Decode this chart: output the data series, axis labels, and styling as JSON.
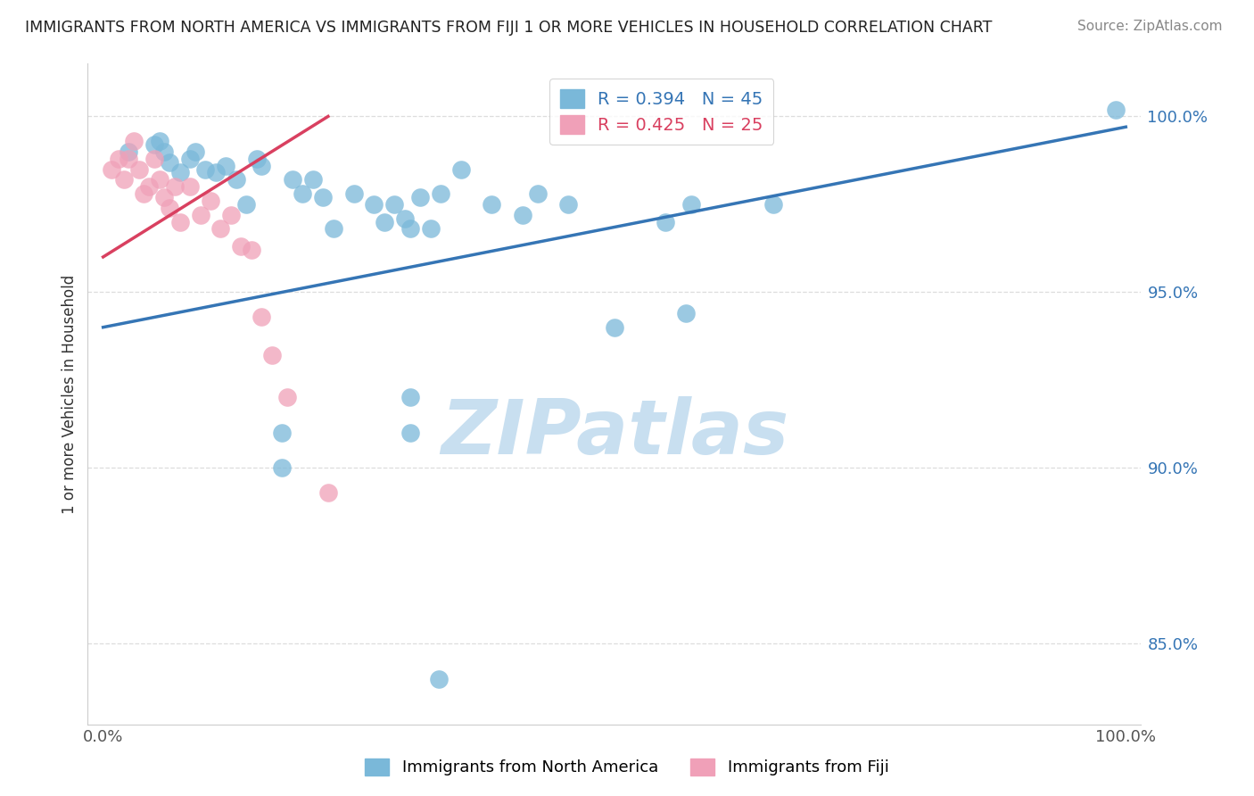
{
  "title": "IMMIGRANTS FROM NORTH AMERICA VS IMMIGRANTS FROM FIJI 1 OR MORE VEHICLES IN HOUSEHOLD CORRELATION CHART",
  "source": "Source: ZipAtlas.com",
  "ylabel": "1 or more Vehicles in Household",
  "ytick_values": [
    0.85,
    0.9,
    0.95,
    1.0
  ],
  "ytick_labels": [
    "85.0%",
    "90.0%",
    "95.0%",
    "100.0%"
  ],
  "xtick_values": [
    0.0,
    1.0
  ],
  "xtick_labels": [
    "0.0%",
    "100.0%"
  ],
  "ylim": [
    0.827,
    1.015
  ],
  "xlim": [
    -0.015,
    1.015
  ],
  "blue_R": 0.394,
  "blue_N": 45,
  "pink_R": 0.425,
  "pink_N": 25,
  "blue_color": "#7ab8d9",
  "pink_color": "#f0a0b8",
  "blue_line_color": "#3575b5",
  "pink_line_color": "#d94060",
  "watermark_text": "ZIPatlas",
  "watermark_color": "#c8dff0",
  "blue_scatter_x": [
    0.025,
    0.05,
    0.055,
    0.06,
    0.065,
    0.075,
    0.085,
    0.09,
    0.1,
    0.11,
    0.12,
    0.13,
    0.14,
    0.15,
    0.155,
    0.185,
    0.195,
    0.205,
    0.215,
    0.225,
    0.245,
    0.265,
    0.275,
    0.285,
    0.295,
    0.3,
    0.31,
    0.32,
    0.33,
    0.35,
    0.38,
    0.41,
    0.425,
    0.455,
    0.5,
    0.55,
    0.3,
    0.3,
    0.175,
    0.175,
    0.57,
    0.575,
    0.655,
    0.328,
    0.99
  ],
  "blue_scatter_y": [
    0.99,
    0.992,
    0.993,
    0.99,
    0.987,
    0.984,
    0.988,
    0.99,
    0.985,
    0.984,
    0.986,
    0.982,
    0.975,
    0.988,
    0.986,
    0.982,
    0.978,
    0.982,
    0.977,
    0.968,
    0.978,
    0.975,
    0.97,
    0.975,
    0.971,
    0.968,
    0.977,
    0.968,
    0.978,
    0.985,
    0.975,
    0.972,
    0.978,
    0.975,
    0.94,
    0.97,
    0.92,
    0.91,
    0.91,
    0.9,
    0.944,
    0.975,
    0.975,
    0.84,
    1.002
  ],
  "pink_scatter_x": [
    0.008,
    0.015,
    0.02,
    0.025,
    0.03,
    0.035,
    0.04,
    0.045,
    0.05,
    0.055,
    0.06,
    0.065,
    0.07,
    0.075,
    0.085,
    0.095,
    0.105,
    0.115,
    0.125,
    0.135,
    0.145,
    0.155,
    0.165,
    0.18,
    0.22
  ],
  "pink_scatter_y": [
    0.985,
    0.988,
    0.982,
    0.988,
    0.993,
    0.985,
    0.978,
    0.98,
    0.988,
    0.982,
    0.977,
    0.974,
    0.98,
    0.97,
    0.98,
    0.972,
    0.976,
    0.968,
    0.972,
    0.963,
    0.962,
    0.943,
    0.932,
    0.92,
    0.893
  ],
  "blue_trend_x": [
    0.0,
    1.0
  ],
  "blue_trend_y": [
    0.94,
    0.997
  ],
  "pink_trend_x": [
    0.0,
    0.22
  ],
  "pink_trend_y": [
    0.96,
    1.0
  ],
  "grid_color": "#dddddd",
  "bottom_legend_items": [
    "Immigrants from North America",
    "Immigrants from Fiji"
  ]
}
